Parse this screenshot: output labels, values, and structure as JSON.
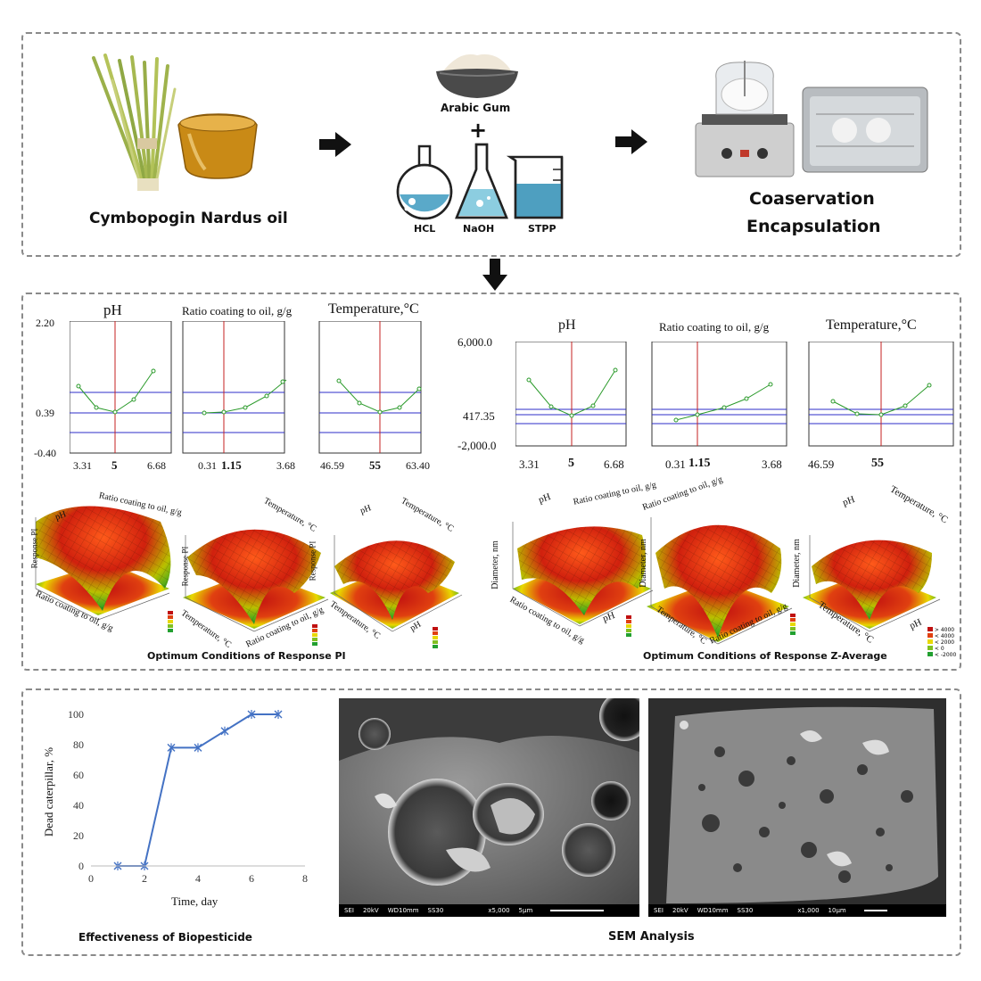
{
  "top": {
    "oil_label": "Cymbopogin Nardus oil",
    "gum_label": "Arabic Gum",
    "plus": "+",
    "chem_labels": [
      "HCL",
      "NaOH",
      "STPP"
    ],
    "process_label_1": "Coaservation",
    "process_label_2": "Encapsulation"
  },
  "pi": {
    "titles": [
      "pH",
      "Ratio coating to oil, g/g",
      "Temperature,°C"
    ],
    "y_ticks": [
      "2.20",
      "0.39",
      "-0.40"
    ],
    "x_ticks": [
      [
        "3.31",
        "5",
        "6.68"
      ],
      [
        "0.31",
        "1.15",
        "3.68"
      ],
      [
        "46.59",
        "55",
        "63.40"
      ]
    ],
    "caption": "Optimum Conditions of Response PI",
    "surface_labels": {
      "s1": [
        "pH",
        "Ratio coating to oil, g/g",
        "Response PI",
        "Ratio coating to oil, g/g"
      ],
      "s2": [
        "Temperature, °C",
        "Response PI",
        "Temperature, °C",
        "Ratio coating to oil, g/g"
      ],
      "s3": [
        "pH",
        "Temperature, °C",
        "Response PI",
        "Temperature, °C",
        "pH"
      ]
    }
  },
  "z": {
    "titles": [
      "pH",
      "Ratio coating to oil, g/g",
      "Temperature,°C"
    ],
    "y_ticks": [
      "6,000.0",
      "417.35",
      "-2,000.0"
    ],
    "x_ticks": [
      [
        "3.31",
        "5",
        "6.68"
      ],
      [
        "0.31",
        "1.15",
        "3.68"
      ],
      [
        "46.59",
        "55",
        ""
      ]
    ],
    "caption": "Optimum Conditions of Response Z-Average",
    "surface_labels": {
      "s1": [
        "pH",
        "Ratio coating to oil, g/g",
        "Diameter, nm",
        "Ratio coating to oil, g/g",
        "pH"
      ],
      "s2": [
        "Ratio coating to oil, g/g",
        "Diameter, nm",
        "Temperature, °C",
        "Ratio coating to oil, g/g"
      ],
      "s3": [
        "pH",
        "Temperature, °C",
        "Diameter, nm",
        "Temperature, °C",
        "pH"
      ]
    },
    "legend": [
      "> 4000",
      "< 4000",
      "< 2000",
      "< 0",
      "< -2000"
    ]
  },
  "chart_data": {
    "type": "line",
    "title": "Effectiveness of Biopesticide",
    "xlabel": "Time, day",
    "ylabel": "Dead caterpillar, %",
    "x": [
      1,
      2,
      3,
      4,
      5,
      6,
      7
    ],
    "y": [
      0,
      0,
      78,
      78,
      89,
      100,
      100
    ],
    "xlim": [
      0,
      8
    ],
    "ylim": [
      0,
      100
    ],
    "x_ticks": [
      0,
      2,
      4,
      6,
      8
    ],
    "y_ticks": [
      0,
      20,
      40,
      60,
      80,
      100
    ],
    "color": "#4472c4"
  },
  "sem": {
    "caption": "SEM Analysis",
    "image1": [
      "SEI",
      "20kV",
      "WD10mm",
      "SS30",
      "x5,000",
      "5µm"
    ],
    "image2": [
      "SEI",
      "20kV",
      "WD10mm",
      "SS30",
      "x1,000",
      "10µm"
    ]
  }
}
